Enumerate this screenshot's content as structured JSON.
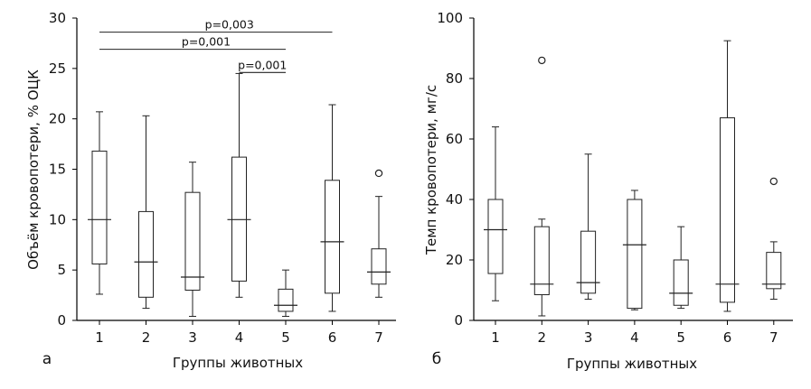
{
  "chart_data": [
    {
      "type": "box",
      "panel_letter": "а",
      "xlabel": "Группы животных",
      "ylabel": "Объём кровопотери, % ОЦК",
      "ylim": [
        0,
        30
      ],
      "y_ticks": [
        0,
        5,
        10,
        15,
        20,
        25,
        30
      ],
      "categories": [
        "1",
        "2",
        "3",
        "4",
        "5",
        "6",
        "7"
      ],
      "boxes": [
        {
          "min": 2.6,
          "q1": 5.6,
          "median": 10.0,
          "q3": 16.8,
          "max": 20.7,
          "outliers": []
        },
        {
          "min": 1.2,
          "q1": 2.3,
          "median": 5.8,
          "q3": 10.8,
          "max": 20.3,
          "outliers": []
        },
        {
          "min": 0.4,
          "q1": 3.0,
          "median": 4.3,
          "q3": 12.7,
          "max": 15.7,
          "outliers": []
        },
        {
          "min": 2.3,
          "q1": 3.9,
          "median": 10.0,
          "q3": 16.2,
          "max": 24.5,
          "outliers": []
        },
        {
          "min": 0.4,
          "q1": 0.9,
          "median": 1.5,
          "q3": 3.1,
          "max": 5.0,
          "outliers": []
        },
        {
          "min": 0.9,
          "q1": 2.7,
          "median": 7.8,
          "q3": 13.9,
          "max": 21.4,
          "outliers": []
        },
        {
          "min": 2.3,
          "q1": 3.6,
          "median": 4.8,
          "q3": 7.1,
          "max": 12.3,
          "outliers": [
            14.6
          ]
        }
      ],
      "significance": [
        {
          "from": 1,
          "to": 6,
          "y": 28.6,
          "label": "p=0,003"
        },
        {
          "from": 1,
          "to": 5,
          "y": 26.9,
          "label": "p=0,001"
        },
        {
          "from": 4,
          "to": 5,
          "y": 24.6,
          "label": "p=0,001"
        }
      ]
    },
    {
      "type": "box",
      "panel_letter": "б",
      "xlabel": "Группы животных",
      "ylabel": "Темп кровопотери, мг/с",
      "ylim": [
        0,
        100
      ],
      "y_ticks": [
        0,
        20,
        40,
        60,
        80,
        100
      ],
      "categories": [
        "1",
        "2",
        "3",
        "4",
        "5",
        "6",
        "7"
      ],
      "boxes": [
        {
          "min": 6.5,
          "q1": 15.5,
          "median": 30.0,
          "q3": 40.0,
          "max": 64.0,
          "outliers": []
        },
        {
          "min": 1.5,
          "q1": 8.5,
          "median": 12.0,
          "q3": 31.0,
          "max": 33.5,
          "outliers": [
            86.0
          ]
        },
        {
          "min": 7.0,
          "q1": 9.0,
          "median": 12.5,
          "q3": 29.5,
          "max": 55.0,
          "outliers": []
        },
        {
          "min": 3.5,
          "q1": 4.0,
          "median": 25.0,
          "q3": 40.0,
          "max": 43.0,
          "outliers": []
        },
        {
          "min": 4.0,
          "q1": 5.0,
          "median": 9.0,
          "q3": 20.0,
          "max": 31.0,
          "outliers": []
        },
        {
          "min": 3.0,
          "q1": 6.0,
          "median": 12.0,
          "q3": 67.0,
          "max": 92.5,
          "outliers": []
        },
        {
          "min": 7.0,
          "q1": 10.5,
          "median": 12.0,
          "q3": 22.5,
          "max": 26.0,
          "outliers": [
            46.0
          ]
        }
      ],
      "significance": []
    }
  ]
}
